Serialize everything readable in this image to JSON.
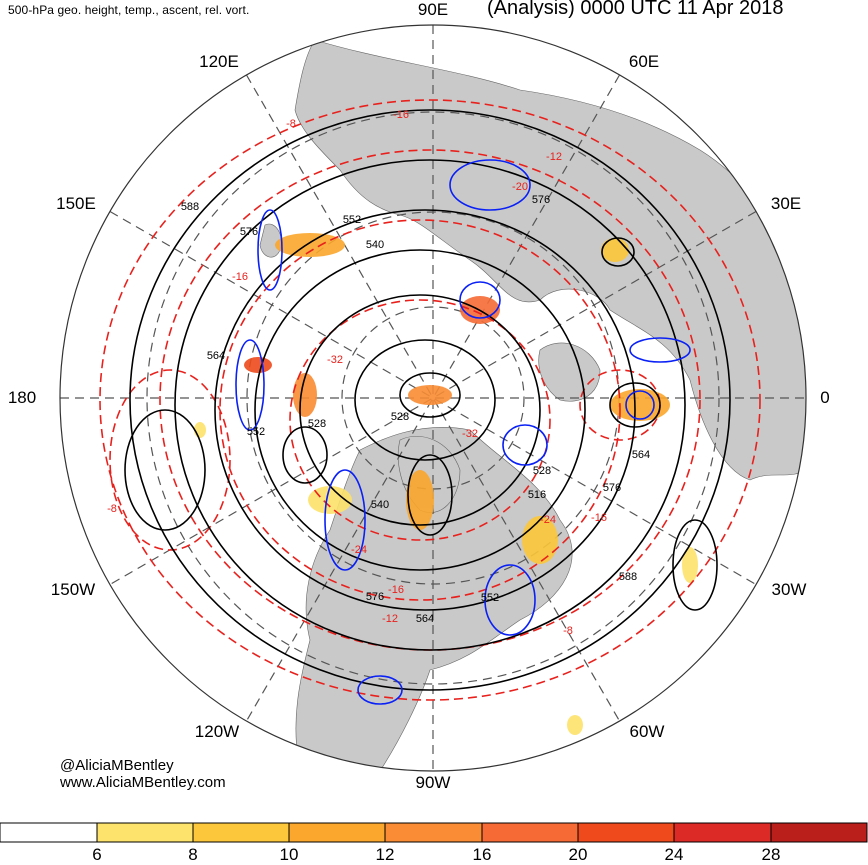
{
  "header": {
    "subtitle": "500-hPa geo. height, temp., ascent, rel. vort.",
    "title": "(Analysis) 0000 UTC 11 Apr 2018"
  },
  "longitude_labels": {
    "deg90e": "90E",
    "deg60e": "60E",
    "deg30e": "30E",
    "deg0": "0",
    "deg30w": "30W",
    "deg60w": "60W",
    "deg90w": "90W",
    "deg120w": "120W",
    "deg150w": "150W",
    "deg180": "180",
    "deg150e": "150E",
    "deg120e": "120E"
  },
  "height_labels": [
    "588",
    "576",
    "552",
    "540",
    "564",
    "552",
    "528",
    "528",
    "540",
    "516",
    "528",
    "576",
    "564",
    "576",
    "552",
    "564",
    "588",
    "576"
  ],
  "temp_labels": [
    "-8",
    "-16",
    "-20",
    "-12",
    "-32",
    "-16",
    "-32",
    "-24",
    "-24",
    "-16",
    "-12",
    "-8",
    "-16",
    "-8"
  ],
  "credit": {
    "handle": "@AliciaMBentley",
    "website": "www.AliciaMBentley.com"
  },
  "colorbar": {
    "ticks": [
      "6",
      "8",
      "10",
      "12",
      "16",
      "20",
      "24",
      "28"
    ],
    "colors": [
      "#ffffff",
      "#fde26b",
      "#fcc73a",
      "#fba62c",
      "#f98c34",
      "#f56a35",
      "#ee4a1c",
      "#dc2a26",
      "#bb1f1c"
    ]
  },
  "colors": {
    "land": "#c9c9c9",
    "height_contour": "#000000",
    "temp_contour": "#e8211d",
    "vorticity_contour": "#0a21f5",
    "grid": "#555555"
  }
}
